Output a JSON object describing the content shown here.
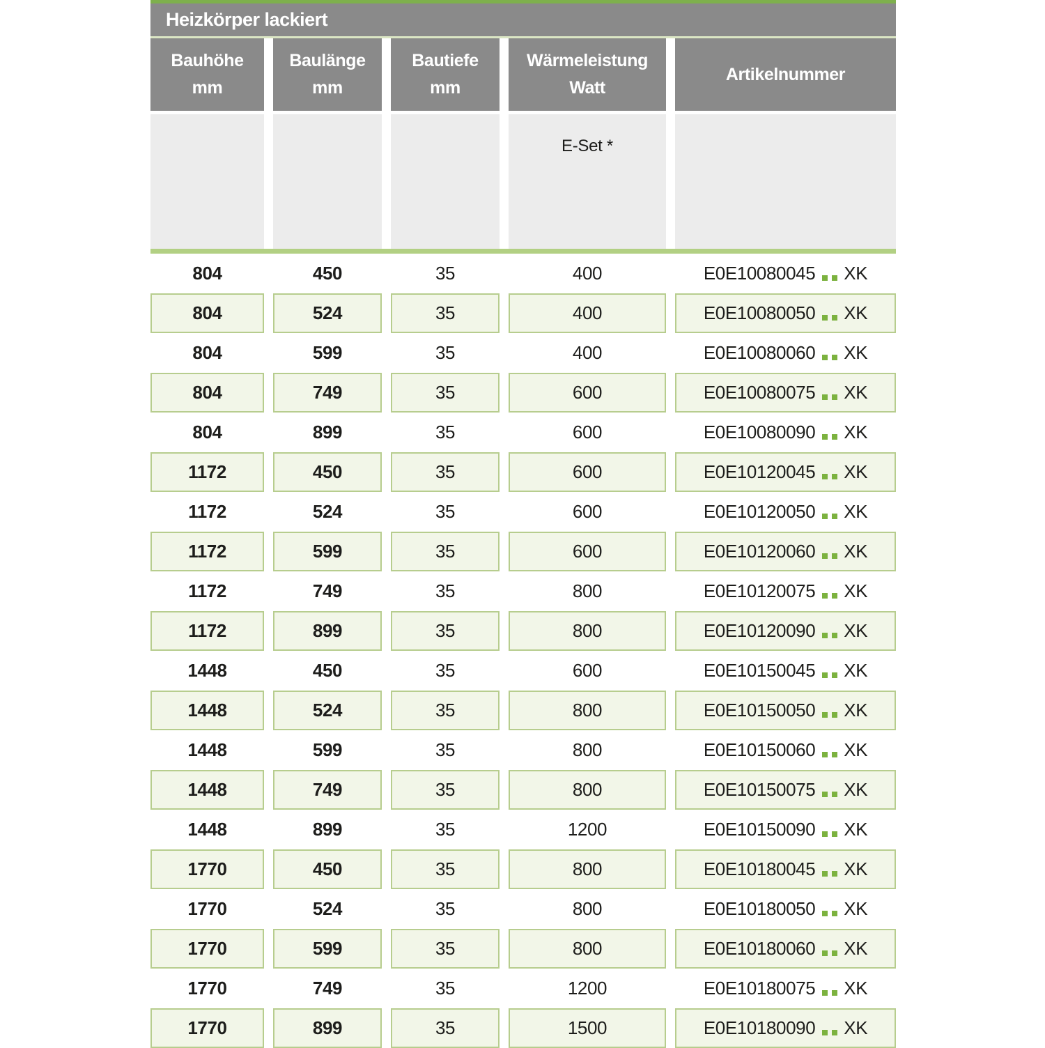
{
  "title": "Heizkörper lackiert",
  "columns": [
    {
      "title": "Bauhöhe",
      "unit": "mm"
    },
    {
      "title": "Baulänge",
      "unit": "mm"
    },
    {
      "title": "Bautiefe",
      "unit": "mm"
    },
    {
      "title": "Wärmeleistung",
      "unit": "Watt"
    },
    {
      "title": "Artikelnummer",
      "unit": ""
    }
  ],
  "subheader": {
    "eset_label": "E-Set *"
  },
  "rows": [
    {
      "bauhoehe": "804",
      "baulaenge": "450",
      "bautiefe": "35",
      "watt": "400",
      "art_num": "E0E10080045",
      "art_suffix": "XK"
    },
    {
      "bauhoehe": "804",
      "baulaenge": "524",
      "bautiefe": "35",
      "watt": "400",
      "art_num": "E0E10080050",
      "art_suffix": "XK"
    },
    {
      "bauhoehe": "804",
      "baulaenge": "599",
      "bautiefe": "35",
      "watt": "400",
      "art_num": "E0E10080060",
      "art_suffix": "XK"
    },
    {
      "bauhoehe": "804",
      "baulaenge": "749",
      "bautiefe": "35",
      "watt": "600",
      "art_num": "E0E10080075",
      "art_suffix": "XK"
    },
    {
      "bauhoehe": "804",
      "baulaenge": "899",
      "bautiefe": "35",
      "watt": "600",
      "art_num": "E0E10080090",
      "art_suffix": "XK"
    },
    {
      "bauhoehe": "1172",
      "baulaenge": "450",
      "bautiefe": "35",
      "watt": "600",
      "art_num": "E0E10120045",
      "art_suffix": "XK"
    },
    {
      "bauhoehe": "1172",
      "baulaenge": "524",
      "bautiefe": "35",
      "watt": "600",
      "art_num": "E0E10120050",
      "art_suffix": "XK"
    },
    {
      "bauhoehe": "1172",
      "baulaenge": "599",
      "bautiefe": "35",
      "watt": "600",
      "art_num": "E0E10120060",
      "art_suffix": "XK"
    },
    {
      "bauhoehe": "1172",
      "baulaenge": "749",
      "bautiefe": "35",
      "watt": "800",
      "art_num": "E0E10120075",
      "art_suffix": "XK"
    },
    {
      "bauhoehe": "1172",
      "baulaenge": "899",
      "bautiefe": "35",
      "watt": "800",
      "art_num": "E0E10120090",
      "art_suffix": "XK"
    },
    {
      "bauhoehe": "1448",
      "baulaenge": "450",
      "bautiefe": "35",
      "watt": "600",
      "art_num": "E0E10150045",
      "art_suffix": "XK"
    },
    {
      "bauhoehe": "1448",
      "baulaenge": "524",
      "bautiefe": "35",
      "watt": "800",
      "art_num": "E0E10150050",
      "art_suffix": "XK"
    },
    {
      "bauhoehe": "1448",
      "baulaenge": "599",
      "bautiefe": "35",
      "watt": "800",
      "art_num": "E0E10150060",
      "art_suffix": "XK"
    },
    {
      "bauhoehe": "1448",
      "baulaenge": "749",
      "bautiefe": "35",
      "watt": "800",
      "art_num": "E0E10150075",
      "art_suffix": "XK"
    },
    {
      "bauhoehe": "1448",
      "baulaenge": "899",
      "bautiefe": "35",
      "watt": "1200",
      "art_num": "E0E10150090",
      "art_suffix": "XK"
    },
    {
      "bauhoehe": "1770",
      "baulaenge": "450",
      "bautiefe": "35",
      "watt": "800",
      "art_num": "E0E10180045",
      "art_suffix": "XK"
    },
    {
      "bauhoehe": "1770",
      "baulaenge": "524",
      "bautiefe": "35",
      "watt": "800",
      "art_num": "E0E10180050",
      "art_suffix": "XK"
    },
    {
      "bauhoehe": "1770",
      "baulaenge": "599",
      "bautiefe": "35",
      "watt": "800",
      "art_num": "E0E10180060",
      "art_suffix": "XK"
    },
    {
      "bauhoehe": "1770",
      "baulaenge": "749",
      "bautiefe": "35",
      "watt": "1200",
      "art_num": "E0E10180075",
      "art_suffix": "XK"
    },
    {
      "bauhoehe": "1770",
      "baulaenge": "899",
      "bautiefe": "35",
      "watt": "1500",
      "art_num": "E0E10180090",
      "art_suffix": "XK"
    }
  ],
  "colors": {
    "accent_green_dark": "#7eb04d",
    "accent_green_bar": "#b2d083",
    "row_alt_bg": "#f2f6e8",
    "row_alt_border": "#b7cd8e",
    "header_gray": "#8a8a8a",
    "subheader_gray": "#ececec",
    "dot_green": "#7cb23f"
  }
}
